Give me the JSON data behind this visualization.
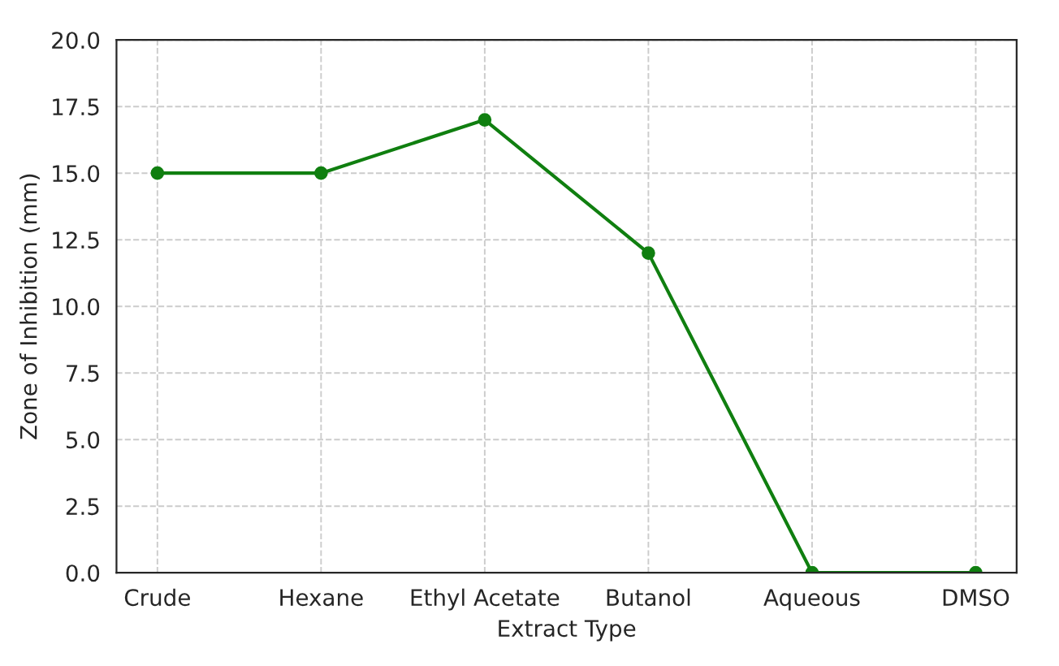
{
  "chart_data": {
    "type": "line",
    "xlabel": "Extract Type",
    "ylabel": "Zone of Inhibition (mm)",
    "categories": [
      "Crude",
      "Hexane",
      "Ethyl Acetate",
      "Butanol",
      "Aqueous",
      "DMSO"
    ],
    "series": [
      {
        "color": "#107f10",
        "values": [
          15,
          15,
          17,
          12,
          0,
          0
        ]
      }
    ],
    "ylim": [
      0,
      20
    ],
    "yticks": [
      {
        "value": 0,
        "label": "0.0"
      },
      {
        "value": 2.5,
        "label": "2.5"
      },
      {
        "value": 5,
        "label": "5.0"
      },
      {
        "value": 7.5,
        "label": "7.5"
      },
      {
        "value": 10,
        "label": "10.0"
      },
      {
        "value": 12.5,
        "label": "12.5"
      },
      {
        "value": 15,
        "label": "15.0"
      },
      {
        "value": 17.5,
        "label": "17.5"
      },
      {
        "value": 20,
        "label": "20.0"
      }
    ],
    "grid": true,
    "marker": "circle",
    "line_style": "solid",
    "legend": false
  }
}
